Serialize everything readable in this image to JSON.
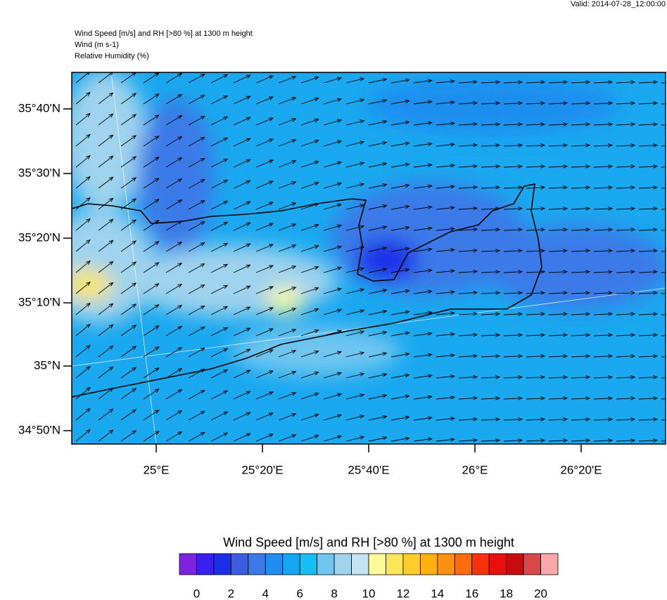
{
  "header": {
    "valid": "Valid: 2014-07-28_12:00:00",
    "lines": [
      "Wind Speed [m/s] and RH [>80 %] at 1300 m height",
      "Wind   (m s-1)",
      "Relative Humidity   (%)"
    ]
  },
  "map": {
    "lat_labels": [
      "35°40'N",
      "35°30'N",
      "35°20'N",
      "35°10'N",
      "35°N",
      "34°50'N"
    ],
    "lon_labels": [
      "25°E",
      "25°20'E",
      "25°40'E",
      "26°E",
      "26°20'E"
    ]
  },
  "colorbar": {
    "title": "Wind Speed [m/s] and RH [>80 %] at 1300 m height",
    "colors": [
      "#7f22e0",
      "#3a1ff0",
      "#1a2ee8",
      "#3a5ce0",
      "#3a7ae8",
      "#1f8ef0",
      "#14a5f5",
      "#14bff7",
      "#6fc6f0",
      "#9fd3ee",
      "#c4e4f2",
      "#fefa9a",
      "#fde55a",
      "#fdcd2a",
      "#fdb010",
      "#fd9010",
      "#fd6c0c",
      "#f8300c",
      "#e8100c",
      "#c80c0c",
      "#d84848",
      "#f8a8a8"
    ],
    "labels": [
      "0",
      "2",
      "4",
      "6",
      "8",
      "10",
      "12",
      "14",
      "16",
      "18",
      "20"
    ]
  }
}
